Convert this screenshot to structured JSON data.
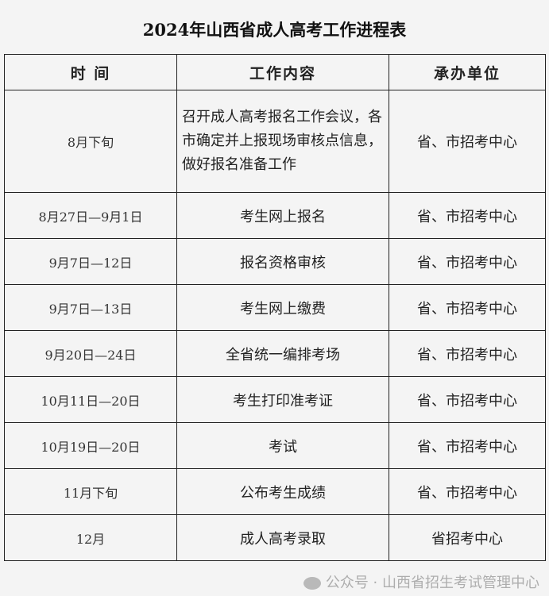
{
  "title": "2024年山西省成人高考工作进程表",
  "headers": [
    "时 间",
    "工作内容",
    "承办单位"
  ],
  "rows": [
    {
      "time": "8月下旬",
      "content": "召开成人高考报名工作会议，各市确定并上报现场审核点信息，做好报名准备工作",
      "unit": "省、市招考中心"
    },
    {
      "time": "8月27日—9月1日",
      "content": "考生网上报名",
      "unit": "省、市招考中心"
    },
    {
      "time": "9月7日—12日",
      "content": "报名资格审核",
      "unit": "省、市招考中心"
    },
    {
      "time": "9月7日—13日",
      "content": "考生网上缴费",
      "unit": "省、市招考中心"
    },
    {
      "time": "9月20日—24日",
      "content": "全省统一编排考场",
      "unit": "省、市招考中心"
    },
    {
      "time": "10月11日—20日",
      "content": "考生打印准考证",
      "unit": "省、市招考中心"
    },
    {
      "time": "10月19日—20日",
      "content": "考试",
      "unit": "省、市招考中心"
    },
    {
      "time": "11月下旬",
      "content": "公布考生成绩",
      "unit": "省、市招考中心"
    },
    {
      "time": "12月",
      "content": "成人高考录取",
      "unit": "省招考中心"
    }
  ],
  "watermark": "公众号 · 山西省招生考试管理中心"
}
